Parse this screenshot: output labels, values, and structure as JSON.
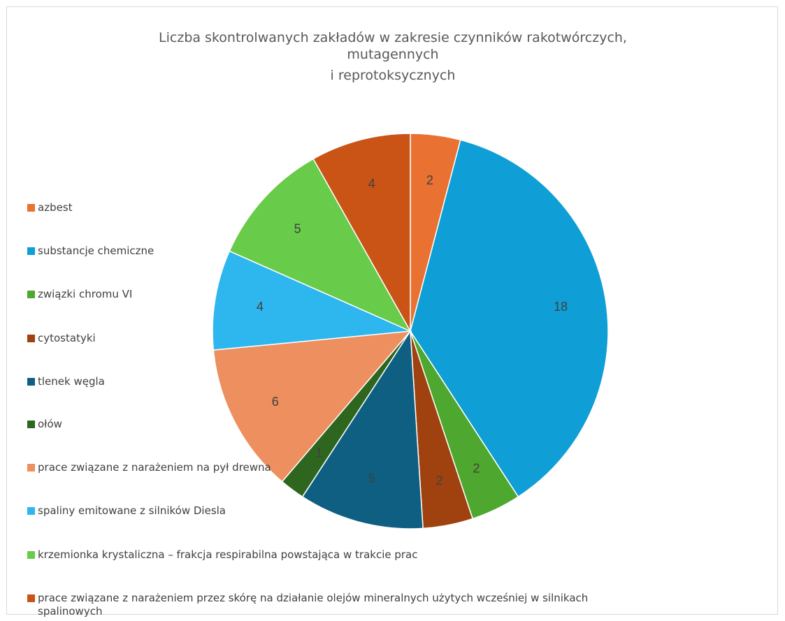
{
  "chart_data": {
    "type": "pie",
    "title_lines": [
      "Liczba skontrolwanych zakładów w zakresie czynników rakotwórczych,",
      "mutagennych",
      "i reprotoksycznych"
    ],
    "categories": [
      "azbest",
      "substancje chemiczne",
      "związki chromu VI",
      "cytostatyki",
      "tlenek węgla",
      "ołów",
      "prace związane z narażeniem na pył drewna",
      "spaliny emitowane z silników Diesla",
      "krzemionka krystaliczna – frakcja respirabilna powstająca w trakcie prac",
      "prace związane z narażeniem przez skórę na działanie olejów mineralnych użytych wcześniej w silnikach spalinowych"
    ],
    "values": [
      2,
      18,
      2,
      2,
      5,
      1,
      6,
      4,
      5,
      4
    ],
    "data_labels": [
      "2",
      "18",
      "2",
      "2",
      "5",
      "1",
      "6",
      "4",
      "5",
      "4"
    ],
    "colors": [
      "#E97132",
      "#0F9ED5",
      "#4EA72E",
      "#A0420F",
      "#0E5F82",
      "#2E6620",
      "#ED8F5E",
      "#2EB6EE",
      "#68CB49",
      "#CA5316"
    ],
    "legend_position": "left",
    "start_angle_deg": 0,
    "direction": "clockwise"
  }
}
